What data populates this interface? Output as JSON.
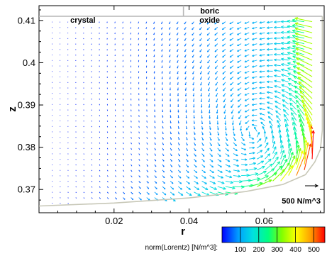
{
  "chart_data": {
    "type": "quiver",
    "xlabel": "r",
    "ylabel": "z",
    "xlim": [
      0.0,
      0.076
    ],
    "ylim": [
      0.3645,
      0.4135
    ],
    "xticks": [
      0.02,
      0.04,
      0.06
    ],
    "xtick_labels": [
      "0.02",
      "0.04",
      "0.06"
    ],
    "yticks": [
      0.37,
      0.38,
      0.39,
      0.4,
      0.41
    ],
    "ytick_labels": [
      "0.37",
      "0.38",
      "0.39",
      "0.4",
      "0.41"
    ],
    "regions": [
      {
        "label": "crystal",
        "r_range": [
          0.0,
          0.0385
        ]
      },
      {
        "label": "boric\noxide",
        "r_range": [
          0.0385,
          0.076
        ]
      }
    ],
    "boundaries": {
      "top_z": 0.411,
      "crystal_oxide_r": 0.0385,
      "wall_profile": [
        [
          0.0,
          0.3661
        ],
        [
          0.02,
          0.3668
        ],
        [
          0.04,
          0.368
        ],
        [
          0.055,
          0.3695
        ],
        [
          0.065,
          0.3712
        ],
        [
          0.071,
          0.3735
        ],
        [
          0.0735,
          0.3765
        ],
        [
          0.075,
          0.3795
        ],
        [
          0.0755,
          0.384
        ],
        [
          0.0755,
          0.411
        ]
      ]
    },
    "vector_field": {
      "description": "norm(Lorentz) field vectors, strongest near outer wall (r~0.07-0.075) and lower boundary",
      "color_quantity": "norm(Lorentz) [N/m^3]"
    },
    "reference_vector": {
      "label": "500 N/m^3",
      "magnitude": 500
    },
    "colorbar": {
      "label": "norm(Lorentz) [N/m^3]:",
      "range": [
        0,
        560
      ],
      "ticks": [
        100,
        200,
        300,
        400,
        500
      ],
      "tick_labels": [
        "100",
        "200",
        "300",
        "400",
        "500"
      ],
      "colormap": [
        "#0000ff",
        "#00a0ff",
        "#00e0e0",
        "#00ff80",
        "#80ff00",
        "#ffff00",
        "#ffa000",
        "#ff0000"
      ]
    },
    "grid": false
  }
}
